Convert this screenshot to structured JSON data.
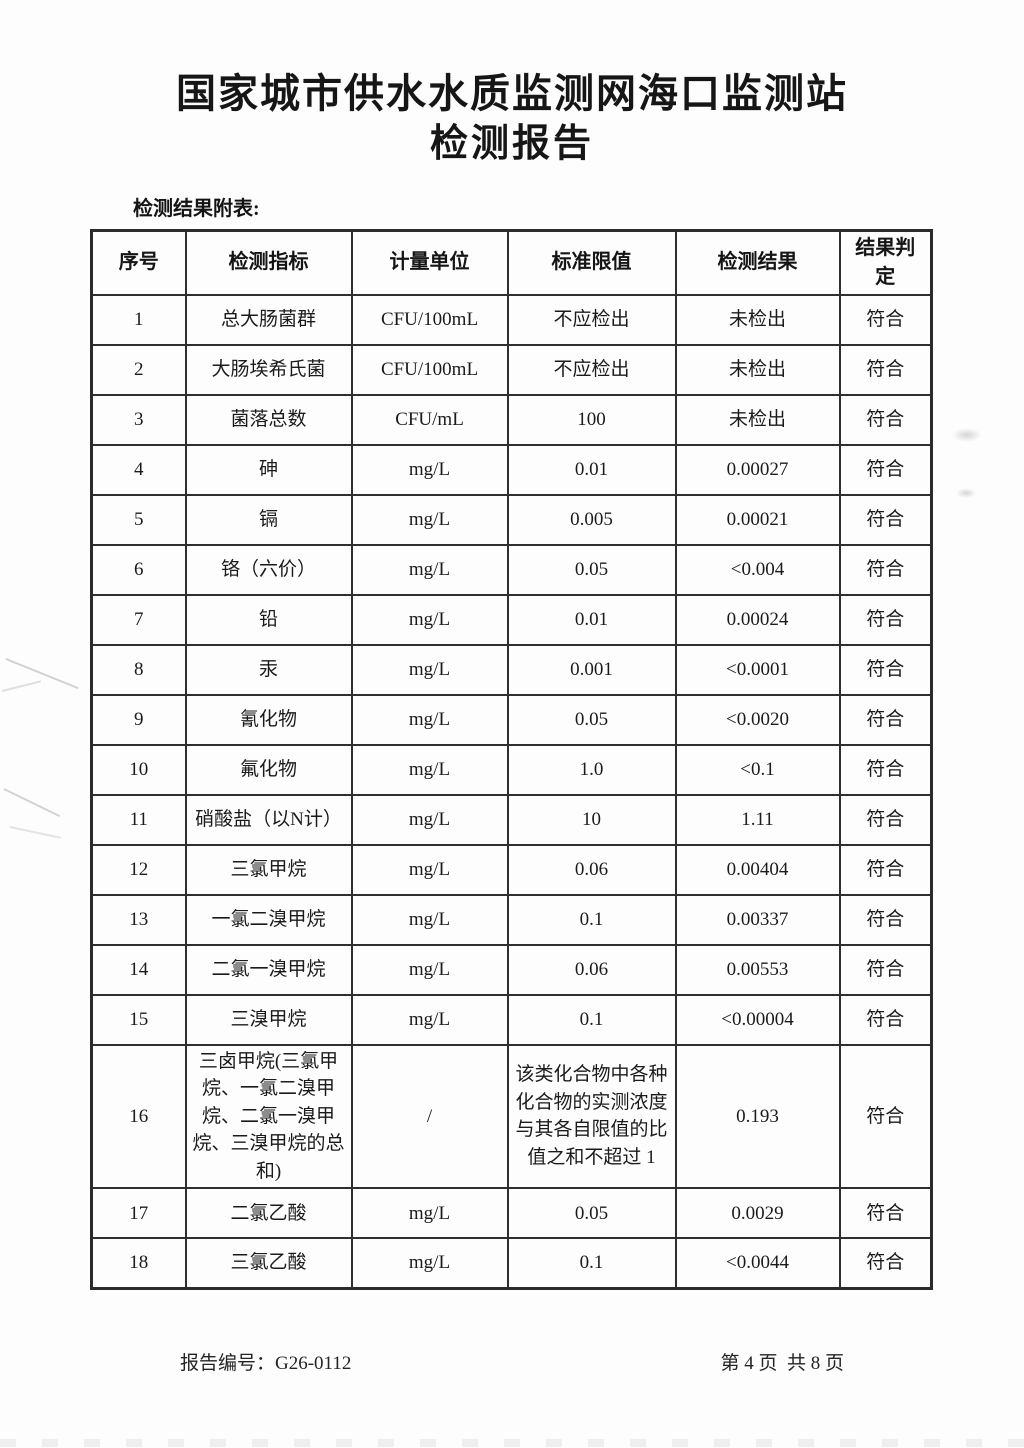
{
  "page": {
    "title_line1": "国家城市供水水质监测网海口监测站",
    "title_line2": "检测报告",
    "table_caption": "检测结果附表:",
    "footer": {
      "report_no": "报告编号：G26-0112",
      "page_info": "第 4 页  共 8 页"
    }
  },
  "table": {
    "headers": [
      "序号",
      "检测指标",
      "计量单位",
      "标准限值",
      "检测结果",
      "结果判定"
    ],
    "rows": [
      [
        "1",
        "总大肠菌群",
        "CFU/100mL",
        "不应检出",
        "未检出",
        "符合"
      ],
      [
        "2",
        "大肠埃希氏菌",
        "CFU/100mL",
        "不应检出",
        "未检出",
        "符合"
      ],
      [
        "3",
        "菌落总数",
        "CFU/mL",
        "100",
        "未检出",
        "符合"
      ],
      [
        "4",
        "砷",
        "mg/L",
        "0.01",
        "0.00027",
        "符合"
      ],
      [
        "5",
        "镉",
        "mg/L",
        "0.005",
        "0.00021",
        "符合"
      ],
      [
        "6",
        "铬（六价）",
        "mg/L",
        "0.05",
        "<0.004",
        "符合"
      ],
      [
        "7",
        "铅",
        "mg/L",
        "0.01",
        "0.00024",
        "符合"
      ],
      [
        "8",
        "汞",
        "mg/L",
        "0.001",
        "<0.0001",
        "符合"
      ],
      [
        "9",
        "氰化物",
        "mg/L",
        "0.05",
        "<0.0020",
        "符合"
      ],
      [
        "10",
        "氟化物",
        "mg/L",
        "1.0",
        "<0.1",
        "符合"
      ],
      [
        "11",
        "硝酸盐（以N计）",
        "mg/L",
        "10",
        "1.11",
        "符合"
      ],
      [
        "12",
        "三氯甲烷",
        "mg/L",
        "0.06",
        "0.00404",
        "符合"
      ],
      [
        "13",
        "一氯二溴甲烷",
        "mg/L",
        "0.1",
        "0.00337",
        "符合"
      ],
      [
        "14",
        "二氯一溴甲烷",
        "mg/L",
        "0.06",
        "0.00553",
        "符合"
      ],
      [
        "15",
        "三溴甲烷",
        "mg/L",
        "0.1",
        "<0.00004",
        "符合"
      ],
      [
        "16",
        "三卤甲烷(三氯甲烷、一氯二溴甲烷、二氯一溴甲烷、三溴甲烷的总和)",
        "/",
        "该类化合物中各种化合物的实测浓度与其各自限值的比值之和不超过 1",
        "0.193",
        "符合"
      ],
      [
        "17",
        "二氯乙酸",
        "mg/L",
        "0.05",
        "0.0029",
        "符合"
      ],
      [
        "18",
        "三氯乙酸",
        "mg/L",
        "0.1",
        "<0.0044",
        "符合"
      ]
    ]
  }
}
